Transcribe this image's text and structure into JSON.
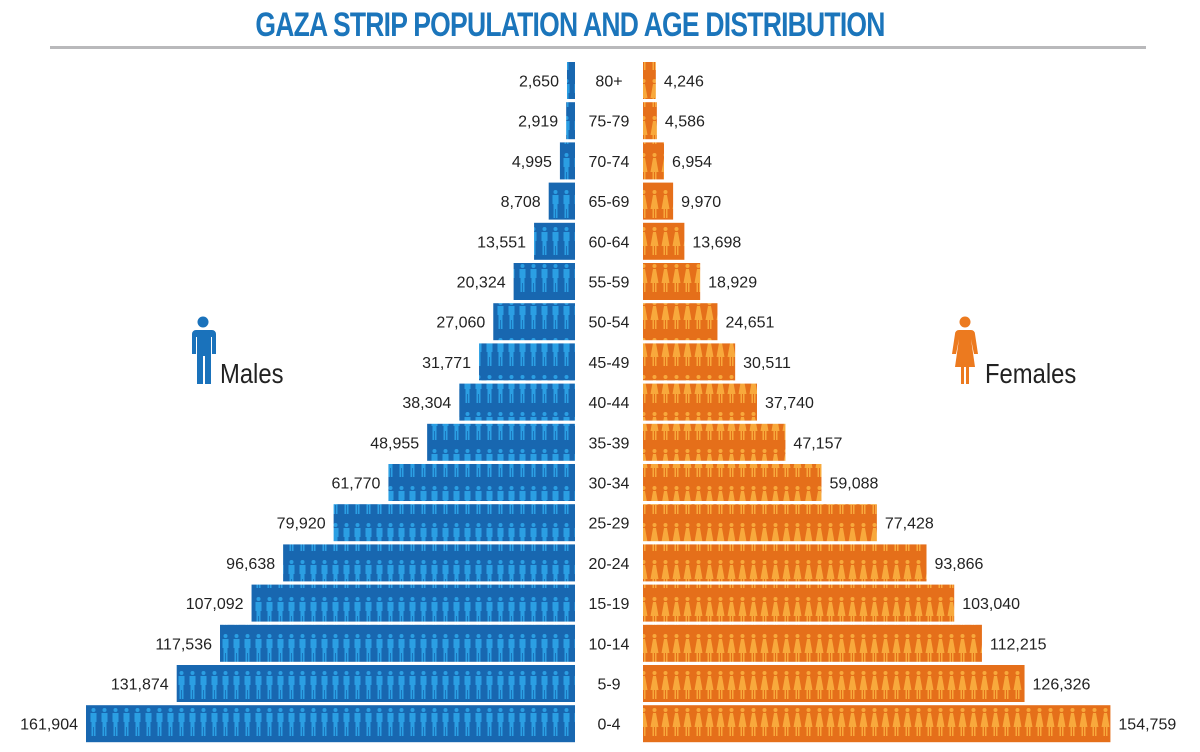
{
  "chart_data": {
    "type": "bar",
    "subtype": "population-pyramid",
    "title": "GAZA STRIP POPULATION AND AGE DISTRIBUTION",
    "categories": [
      "80+",
      "75-79",
      "70-74",
      "65-69",
      "60-64",
      "55-59",
      "50-54",
      "45-49",
      "40-44",
      "35-39",
      "30-34",
      "25-29",
      "20-24",
      "15-19",
      "10-14",
      "5-9",
      "0-4"
    ],
    "series": [
      {
        "name": "Males",
        "color": "#1a72bb",
        "side": "left",
        "values": [
          2650,
          2919,
          4995,
          8708,
          13551,
          20324,
          27060,
          31771,
          38304,
          48955,
          61770,
          79920,
          96638,
          107092,
          117536,
          131874,
          161904
        ],
        "labels": [
          "2,650",
          "2,919",
          "4,995",
          "8,708",
          "13,551",
          "20,324",
          "27,060",
          "31,771",
          "38,304",
          "48,955",
          "61,770",
          "79,920",
          "96,638",
          "107,092",
          "117,536",
          "131,874",
          "161,904"
        ]
      },
      {
        "name": "Females",
        "color": "#ec7a1f",
        "side": "right",
        "values": [
          4246,
          4586,
          6954,
          9970,
          13698,
          18929,
          24651,
          30511,
          37740,
          47157,
          59088,
          77428,
          93866,
          103040,
          112215,
          126326,
          154759
        ],
        "labels": [
          "4,246",
          "4,586",
          "6,954",
          "9,970",
          "13,698",
          "18,929",
          "24,651",
          "30,511",
          "37,740",
          "47,157",
          "59,088",
          "77,428",
          "93,866",
          "103,040",
          "112,215",
          "126,326",
          "154,759"
        ]
      }
    ],
    "grid": false,
    "legend": "sides",
    "icons": {
      "males": "male-figure-icon",
      "females": "female-figure-icon"
    }
  }
}
